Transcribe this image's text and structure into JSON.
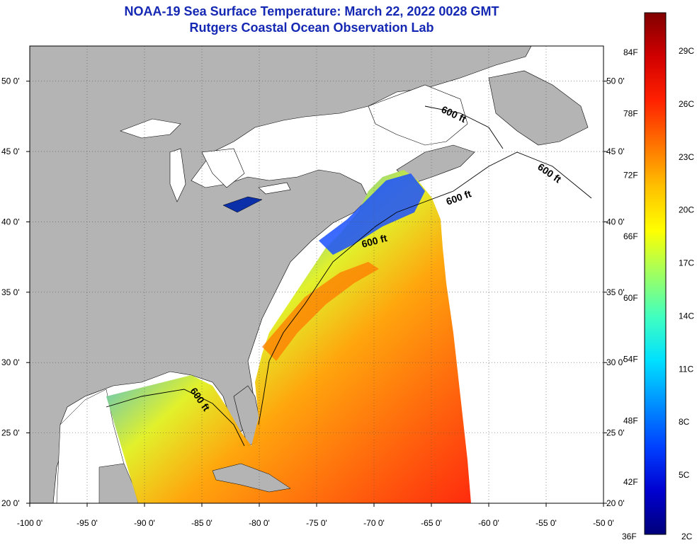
{
  "header": {
    "title": "NOAA-19 Sea Surface Temperature:  March 22, 2022 0028 GMT",
    "subtitle": "Rutgers Coastal Ocean Observation Lab"
  },
  "map": {
    "lon_range": [
      -100,
      -50
    ],
    "lat_range": [
      20,
      52.5
    ],
    "lon_ticks": [
      {
        "v": -100,
        "label": "-100 0'"
      },
      {
        "v": -95,
        "label": "-95 0'"
      },
      {
        "v": -90,
        "label": "-90 0'"
      },
      {
        "v": -85,
        "label": "-85 0'"
      },
      {
        "v": -80,
        "label": "-80 0'"
      },
      {
        "v": -75,
        "label": "-75 0'"
      },
      {
        "v": -70,
        "label": "-70 0'"
      },
      {
        "v": -65,
        "label": "-65 0'"
      },
      {
        "v": -60,
        "label": "-60 0'"
      },
      {
        "v": -55,
        "label": "-55 0'"
      },
      {
        "v": -50,
        "label": "-50 0'"
      }
    ],
    "lat_ticks": [
      {
        "v": 20,
        "label": "20 0'"
      },
      {
        "v": 25,
        "label": "25 0'"
      },
      {
        "v": 30,
        "label": "30 0'"
      },
      {
        "v": 35,
        "label": "35 0'"
      },
      {
        "v": 40,
        "label": "40 0'"
      },
      {
        "v": 45,
        "label": "45 0'"
      },
      {
        "v": 50,
        "label": "50 0'"
      }
    ],
    "contour_labels": [
      "600 ft",
      "600 ft",
      "600 ft",
      "600 ft",
      "600 ft"
    ],
    "grid": true,
    "colors": {
      "land": "#b4b4b4",
      "no_data": "#ffffff",
      "grid": "#555555",
      "title": "#1428b4"
    }
  },
  "colorbar": {
    "min_label_f": "36F",
    "min_label_c": "2C",
    "f_labels": [
      "84F",
      "78F",
      "72F",
      "66F",
      "60F",
      "54F",
      "48F",
      "42F"
    ],
    "c_labels": [
      "29C",
      "26C",
      "23C",
      "20C",
      "17C",
      "14C",
      "11C",
      "8C",
      "5C"
    ],
    "gradient": [
      "#00007a",
      "#0000d0",
      "#0040ff",
      "#0090ff",
      "#00e0ff",
      "#40ffc0",
      "#a0ff60",
      "#ffff00",
      "#ffc000",
      "#ff7000",
      "#ff2000",
      "#d00000",
      "#800000"
    ]
  }
}
